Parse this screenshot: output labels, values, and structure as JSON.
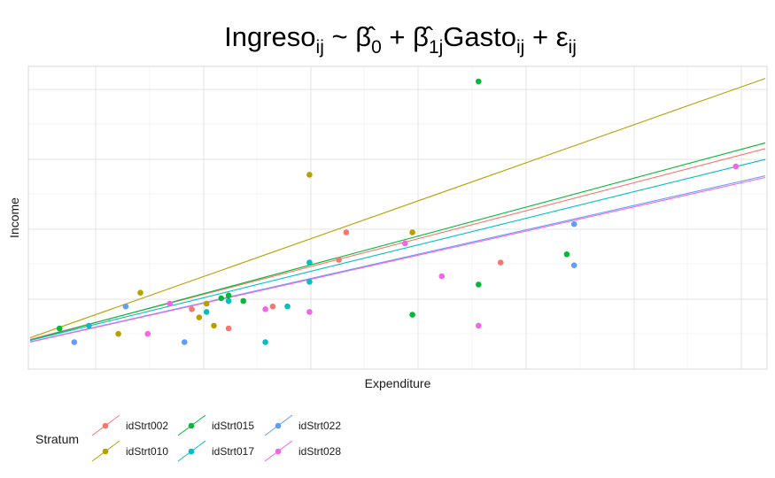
{
  "chart_data": {
    "type": "scatter",
    "title": {
      "parts": [
        {
          "text": "Ingreso",
          "sub": "ij"
        },
        {
          "text": " ~ "
        },
        {
          "text": "β",
          "hat": true,
          "sub": "0"
        },
        {
          "text": " + "
        },
        {
          "text": "β",
          "hat": true,
          "sub": "1j"
        },
        {
          "text": "Gasto",
          "sub": "ij"
        },
        {
          "text": " + "
        },
        {
          "text": "ε",
          "sub": "ij"
        }
      ]
    },
    "xlabel": "Expenditure",
    "ylabel": "Income",
    "xlim": [
      0,
      100
    ],
    "ylim": [
      0,
      100
    ],
    "grid": true,
    "show_tick_labels": false,
    "legend_title": "Stratum",
    "legend_position": "bottom-left",
    "series": [
      {
        "name": "idStrt002",
        "color": "#F8766D",
        "line": {
          "intercept": 6.0,
          "slope": 0.695
        },
        "points": [
          [
            22,
            17
          ],
          [
            27,
            10
          ],
          [
            33,
            18
          ],
          [
            42,
            35
          ],
          [
            43,
            45
          ],
          [
            64,
            34
          ]
        ]
      },
      {
        "name": "idStrt010",
        "color": "#B79F00",
        "line": {
          "intercept": 6.6,
          "slope": 0.945
        },
        "points": [
          [
            12,
            8
          ],
          [
            15,
            23
          ],
          [
            23,
            14
          ],
          [
            24,
            19
          ],
          [
            25,
            11
          ],
          [
            38,
            66
          ],
          [
            52,
            45
          ]
        ]
      },
      {
        "name": "idStrt015",
        "color": "#00BA38",
        "line": {
          "intercept": 5.7,
          "slope": 0.719
        },
        "points": [
          [
            4,
            10
          ],
          [
            26,
            21
          ],
          [
            27,
            22
          ],
          [
            29,
            20
          ],
          [
            52,
            15
          ],
          [
            61,
            26
          ],
          [
            61,
            100
          ],
          [
            73,
            37
          ]
        ]
      },
      {
        "name": "idStrt017",
        "color": "#00BFC4",
        "line": {
          "intercept": 5.6,
          "slope": 0.66
        },
        "points": [
          [
            8,
            11
          ],
          [
            24,
            16
          ],
          [
            27,
            20
          ],
          [
            32,
            5
          ],
          [
            35,
            18
          ],
          [
            38,
            34
          ],
          [
            38,
            27
          ]
        ]
      },
      {
        "name": "idStrt022",
        "color": "#619CFF",
        "line": {
          "intercept": 5.1,
          "slope": 0.605
        },
        "points": [
          [
            6,
            5
          ],
          [
            13,
            18
          ],
          [
            21,
            5
          ],
          [
            74,
            48
          ],
          [
            74,
            33
          ]
        ]
      },
      {
        "name": "idStrt028",
        "color": "#F564E3",
        "line": {
          "intercept": 5.0,
          "slope": 0.6
        },
        "points": [
          [
            16,
            8
          ],
          [
            19,
            19
          ],
          [
            32,
            17
          ],
          [
            38,
            16
          ],
          [
            51,
            41
          ],
          [
            56,
            29
          ],
          [
            61,
            11
          ],
          [
            96,
            69
          ]
        ]
      }
    ]
  }
}
